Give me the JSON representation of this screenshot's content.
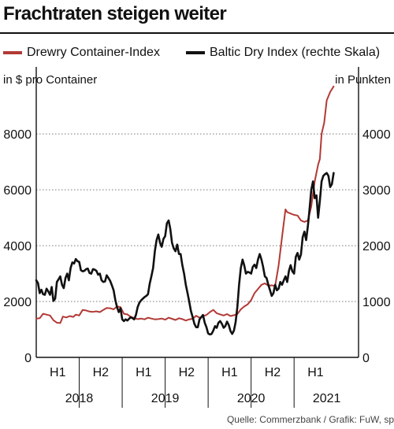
{
  "chart_data": {
    "type": "line",
    "title": "Frachtraten steigen weiter",
    "y_left_label": "in $ pro Container",
    "y_right_label": "in Punkten",
    "y_left_ticks": [
      "0",
      "2000",
      "4000",
      "6000",
      "8000"
    ],
    "y_right_ticks": [
      "0",
      "1000",
      "2000",
      "3000",
      "4000"
    ],
    "y_left_range": [
      0,
      10400
    ],
    "y_right_range": [
      0,
      5200
    ],
    "x_range": [
      2018.0,
      2021.75
    ],
    "half_labels": [
      {
        "x": 2018.25,
        "label": "H1"
      },
      {
        "x": 2018.75,
        "label": "H2"
      },
      {
        "x": 2019.25,
        "label": "H1"
      },
      {
        "x": 2019.75,
        "label": "H2"
      },
      {
        "x": 2020.25,
        "label": "H1"
      },
      {
        "x": 2020.75,
        "label": "H2"
      },
      {
        "x": 2021.25,
        "label": "H1"
      }
    ],
    "year_labels": [
      {
        "x": 2018.5,
        "label": "2018"
      },
      {
        "x": 2019.5,
        "label": "2019"
      },
      {
        "x": 2020.5,
        "label": "2020"
      },
      {
        "x": 2021.38,
        "label": "2021"
      }
    ],
    "x_separators": [
      2018.5,
      2019.0,
      2019.5,
      2020.0,
      2020.5,
      2021.0
    ],
    "grid": true,
    "legend_position": "top",
    "series": [
      {
        "name": "Drewry Container-Index",
        "color": "#b23a36",
        "axis": "left",
        "points": [
          [
            2018.0,
            1390
          ],
          [
            2018.04,
            1400
          ],
          [
            2018.08,
            1560
          ],
          [
            2018.12,
            1530
          ],
          [
            2018.16,
            1500
          ],
          [
            2018.2,
            1330
          ],
          [
            2018.24,
            1240
          ],
          [
            2018.28,
            1230
          ],
          [
            2018.31,
            1460
          ],
          [
            2018.35,
            1430
          ],
          [
            2018.39,
            1480
          ],
          [
            2018.43,
            1450
          ],
          [
            2018.46,
            1530
          ],
          [
            2018.5,
            1500
          ],
          [
            2018.54,
            1700
          ],
          [
            2018.58,
            1680
          ],
          [
            2018.62,
            1640
          ],
          [
            2018.66,
            1630
          ],
          [
            2018.7,
            1650
          ],
          [
            2018.74,
            1620
          ],
          [
            2018.78,
            1700
          ],
          [
            2018.82,
            1770
          ],
          [
            2018.86,
            1760
          ],
          [
            2018.9,
            1720
          ],
          [
            2018.94,
            1820
          ],
          [
            2018.98,
            1800
          ],
          [
            2019.02,
            1560
          ],
          [
            2019.06,
            1540
          ],
          [
            2019.1,
            1450
          ],
          [
            2019.14,
            1410
          ],
          [
            2019.18,
            1370
          ],
          [
            2019.22,
            1390
          ],
          [
            2019.26,
            1360
          ],
          [
            2019.3,
            1420
          ],
          [
            2019.34,
            1390
          ],
          [
            2019.38,
            1360
          ],
          [
            2019.42,
            1370
          ],
          [
            2019.46,
            1390
          ],
          [
            2019.5,
            1350
          ],
          [
            2019.54,
            1420
          ],
          [
            2019.58,
            1380
          ],
          [
            2019.62,
            1340
          ],
          [
            2019.66,
            1400
          ],
          [
            2019.7,
            1370
          ],
          [
            2019.74,
            1320
          ],
          [
            2019.78,
            1360
          ],
          [
            2019.82,
            1380
          ],
          [
            2019.86,
            1490
          ],
          [
            2019.9,
            1420
          ],
          [
            2019.94,
            1470
          ],
          [
            2019.98,
            1520
          ],
          [
            2020.02,
            1620
          ],
          [
            2020.06,
            1700
          ],
          [
            2020.1,
            1580
          ],
          [
            2020.14,
            1540
          ],
          [
            2020.18,
            1500
          ],
          [
            2020.22,
            1550
          ],
          [
            2020.26,
            1480
          ],
          [
            2020.3,
            1510
          ],
          [
            2020.34,
            1550
          ],
          [
            2020.38,
            1720
          ],
          [
            2020.42,
            1820
          ],
          [
            2020.46,
            1900
          ],
          [
            2020.5,
            2050
          ],
          [
            2020.54,
            2300
          ],
          [
            2020.58,
            2450
          ],
          [
            2020.62,
            2600
          ],
          [
            2020.66,
            2650
          ],
          [
            2020.7,
            2570
          ],
          [
            2020.74,
            2580
          ],
          [
            2020.78,
            2560
          ],
          [
            2020.82,
            3300
          ],
          [
            2020.86,
            4300
          ],
          [
            2020.9,
            5300
          ],
          [
            2020.92,
            5200
          ],
          [
            2020.96,
            5150
          ],
          [
            2021.0,
            5100
          ],
          [
            2021.04,
            5080
          ],
          [
            2021.08,
            4900
          ],
          [
            2021.12,
            4850
          ],
          [
            2021.16,
            4900
          ],
          [
            2021.2,
            5400
          ],
          [
            2021.24,
            6300
          ],
          [
            2021.28,
            6900
          ],
          [
            2021.3,
            7100
          ],
          [
            2021.32,
            8000
          ],
          [
            2021.35,
            8400
          ],
          [
            2021.38,
            9200
          ],
          [
            2021.42,
            9500
          ],
          [
            2021.46,
            9700
          ]
        ]
      },
      {
        "name": "Baltic Dry Index (rechte Skala)",
        "color": "#111111",
        "axis": "right",
        "points": [
          [
            2018.0,
            1380
          ],
          [
            2018.02,
            1330
          ],
          [
            2018.04,
            1150
          ],
          [
            2018.06,
            1210
          ],
          [
            2018.08,
            1130
          ],
          [
            2018.1,
            1120
          ],
          [
            2018.12,
            1230
          ],
          [
            2018.14,
            1180
          ],
          [
            2018.16,
            1120
          ],
          [
            2018.18,
            1260
          ],
          [
            2018.2,
            1010
          ],
          [
            2018.22,
            1050
          ],
          [
            2018.24,
            1350
          ],
          [
            2018.26,
            1400
          ],
          [
            2018.28,
            1450
          ],
          [
            2018.3,
            1300
          ],
          [
            2018.32,
            1240
          ],
          [
            2018.34,
            1420
          ],
          [
            2018.36,
            1500
          ],
          [
            2018.38,
            1380
          ],
          [
            2018.4,
            1600
          ],
          [
            2018.42,
            1700
          ],
          [
            2018.44,
            1680
          ],
          [
            2018.46,
            1760
          ],
          [
            2018.48,
            1720
          ],
          [
            2018.5,
            1710
          ],
          [
            2018.52,
            1560
          ],
          [
            2018.54,
            1540
          ],
          [
            2018.56,
            1550
          ],
          [
            2018.58,
            1580
          ],
          [
            2018.6,
            1590
          ],
          [
            2018.62,
            1510
          ],
          [
            2018.64,
            1500
          ],
          [
            2018.66,
            1580
          ],
          [
            2018.68,
            1570
          ],
          [
            2018.7,
            1550
          ],
          [
            2018.72,
            1480
          ],
          [
            2018.74,
            1500
          ],
          [
            2018.76,
            1380
          ],
          [
            2018.78,
            1350
          ],
          [
            2018.8,
            1360
          ],
          [
            2018.82,
            1470
          ],
          [
            2018.84,
            1420
          ],
          [
            2018.86,
            1370
          ],
          [
            2018.88,
            1290
          ],
          [
            2018.9,
            1200
          ],
          [
            2018.92,
            1030
          ],
          [
            2018.94,
            900
          ],
          [
            2018.96,
            810
          ],
          [
            2018.98,
            880
          ],
          [
            2019.0,
            680
          ],
          [
            2019.02,
            650
          ],
          [
            2019.04,
            680
          ],
          [
            2019.06,
            660
          ],
          [
            2019.08,
            690
          ],
          [
            2019.1,
            720
          ],
          [
            2019.12,
            700
          ],
          [
            2019.14,
            680
          ],
          [
            2019.16,
            760
          ],
          [
            2019.18,
            900
          ],
          [
            2019.2,
            980
          ],
          [
            2019.22,
            1020
          ],
          [
            2019.24,
            1050
          ],
          [
            2019.26,
            1080
          ],
          [
            2019.28,
            1100
          ],
          [
            2019.3,
            1130
          ],
          [
            2019.32,
            1320
          ],
          [
            2019.34,
            1450
          ],
          [
            2019.36,
            1600
          ],
          [
            2019.38,
            1900
          ],
          [
            2019.4,
            2100
          ],
          [
            2019.42,
            2200
          ],
          [
            2019.44,
            2050
          ],
          [
            2019.46,
            1980
          ],
          [
            2019.48,
            2120
          ],
          [
            2019.5,
            2170
          ],
          [
            2019.52,
            2400
          ],
          [
            2019.54,
            2450
          ],
          [
            2019.56,
            2300
          ],
          [
            2019.58,
            2050
          ],
          [
            2019.6,
            1950
          ],
          [
            2019.62,
            1900
          ],
          [
            2019.64,
            2020
          ],
          [
            2019.66,
            1850
          ],
          [
            2019.68,
            1850
          ],
          [
            2019.7,
            1650
          ],
          [
            2019.72,
            1500
          ],
          [
            2019.74,
            1300
          ],
          [
            2019.76,
            1150
          ],
          [
            2019.78,
            1000
          ],
          [
            2019.8,
            830
          ],
          [
            2019.82,
            720
          ],
          [
            2019.84,
            600
          ],
          [
            2019.86,
            540
          ],
          [
            2019.88,
            540
          ],
          [
            2019.9,
            680
          ],
          [
            2019.92,
            720
          ],
          [
            2019.94,
            760
          ],
          [
            2019.96,
            620
          ],
          [
            2019.98,
            540
          ],
          [
            2020.0,
            430
          ],
          [
            2020.02,
            410
          ],
          [
            2020.04,
            420
          ],
          [
            2020.06,
            480
          ],
          [
            2020.08,
            560
          ],
          [
            2020.1,
            530
          ],
          [
            2020.12,
            620
          ],
          [
            2020.14,
            650
          ],
          [
            2020.16,
            600
          ],
          [
            2020.18,
            530
          ],
          [
            2020.2,
            560
          ],
          [
            2020.22,
            640
          ],
          [
            2020.24,
            580
          ],
          [
            2020.26,
            470
          ],
          [
            2020.28,
            420
          ],
          [
            2020.3,
            480
          ],
          [
            2020.32,
            630
          ],
          [
            2020.34,
            900
          ],
          [
            2020.36,
            1300
          ],
          [
            2020.38,
            1600
          ],
          [
            2020.4,
            1750
          ],
          [
            2020.42,
            1650
          ],
          [
            2020.44,
            1500
          ],
          [
            2020.46,
            1530
          ],
          [
            2020.48,
            1520
          ],
          [
            2020.5,
            1500
          ],
          [
            2020.52,
            1620
          ],
          [
            2020.54,
            1660
          ],
          [
            2020.56,
            1600
          ],
          [
            2020.58,
            1750
          ],
          [
            2020.6,
            1850
          ],
          [
            2020.62,
            1750
          ],
          [
            2020.64,
            1620
          ],
          [
            2020.66,
            1450
          ],
          [
            2020.68,
            1420
          ],
          [
            2020.7,
            1300
          ],
          [
            2020.72,
            1200
          ],
          [
            2020.74,
            1100
          ],
          [
            2020.76,
            1150
          ],
          [
            2020.78,
            1300
          ],
          [
            2020.8,
            1200
          ],
          [
            2020.82,
            1230
          ],
          [
            2020.84,
            1350
          ],
          [
            2020.86,
            1300
          ],
          [
            2020.88,
            1380
          ],
          [
            2020.9,
            1450
          ],
          [
            2020.92,
            1350
          ],
          [
            2020.94,
            1550
          ],
          [
            2020.96,
            1650
          ],
          [
            2020.98,
            1540
          ],
          [
            2021.0,
            1500
          ],
          [
            2021.02,
            1800
          ],
          [
            2021.04,
            1870
          ],
          [
            2021.06,
            1750
          ],
          [
            2021.08,
            1840
          ],
          [
            2021.1,
            2150
          ],
          [
            2021.12,
            2250
          ],
          [
            2021.14,
            2100
          ],
          [
            2021.16,
            2350
          ],
          [
            2021.18,
            2650
          ],
          [
            2021.2,
            3000
          ],
          [
            2021.22,
            3150
          ],
          [
            2021.24,
            2850
          ],
          [
            2021.26,
            2900
          ],
          [
            2021.28,
            2500
          ],
          [
            2021.3,
            2800
          ],
          [
            2021.32,
            3150
          ],
          [
            2021.34,
            3250
          ],
          [
            2021.36,
            3280
          ],
          [
            2021.38,
            3300
          ],
          [
            2021.4,
            3250
          ],
          [
            2021.42,
            3050
          ],
          [
            2021.44,
            3100
          ],
          [
            2021.46,
            3300
          ]
        ]
      }
    ]
  },
  "source": "Quelle: Commerzbank / Grafik: FuW, sp"
}
